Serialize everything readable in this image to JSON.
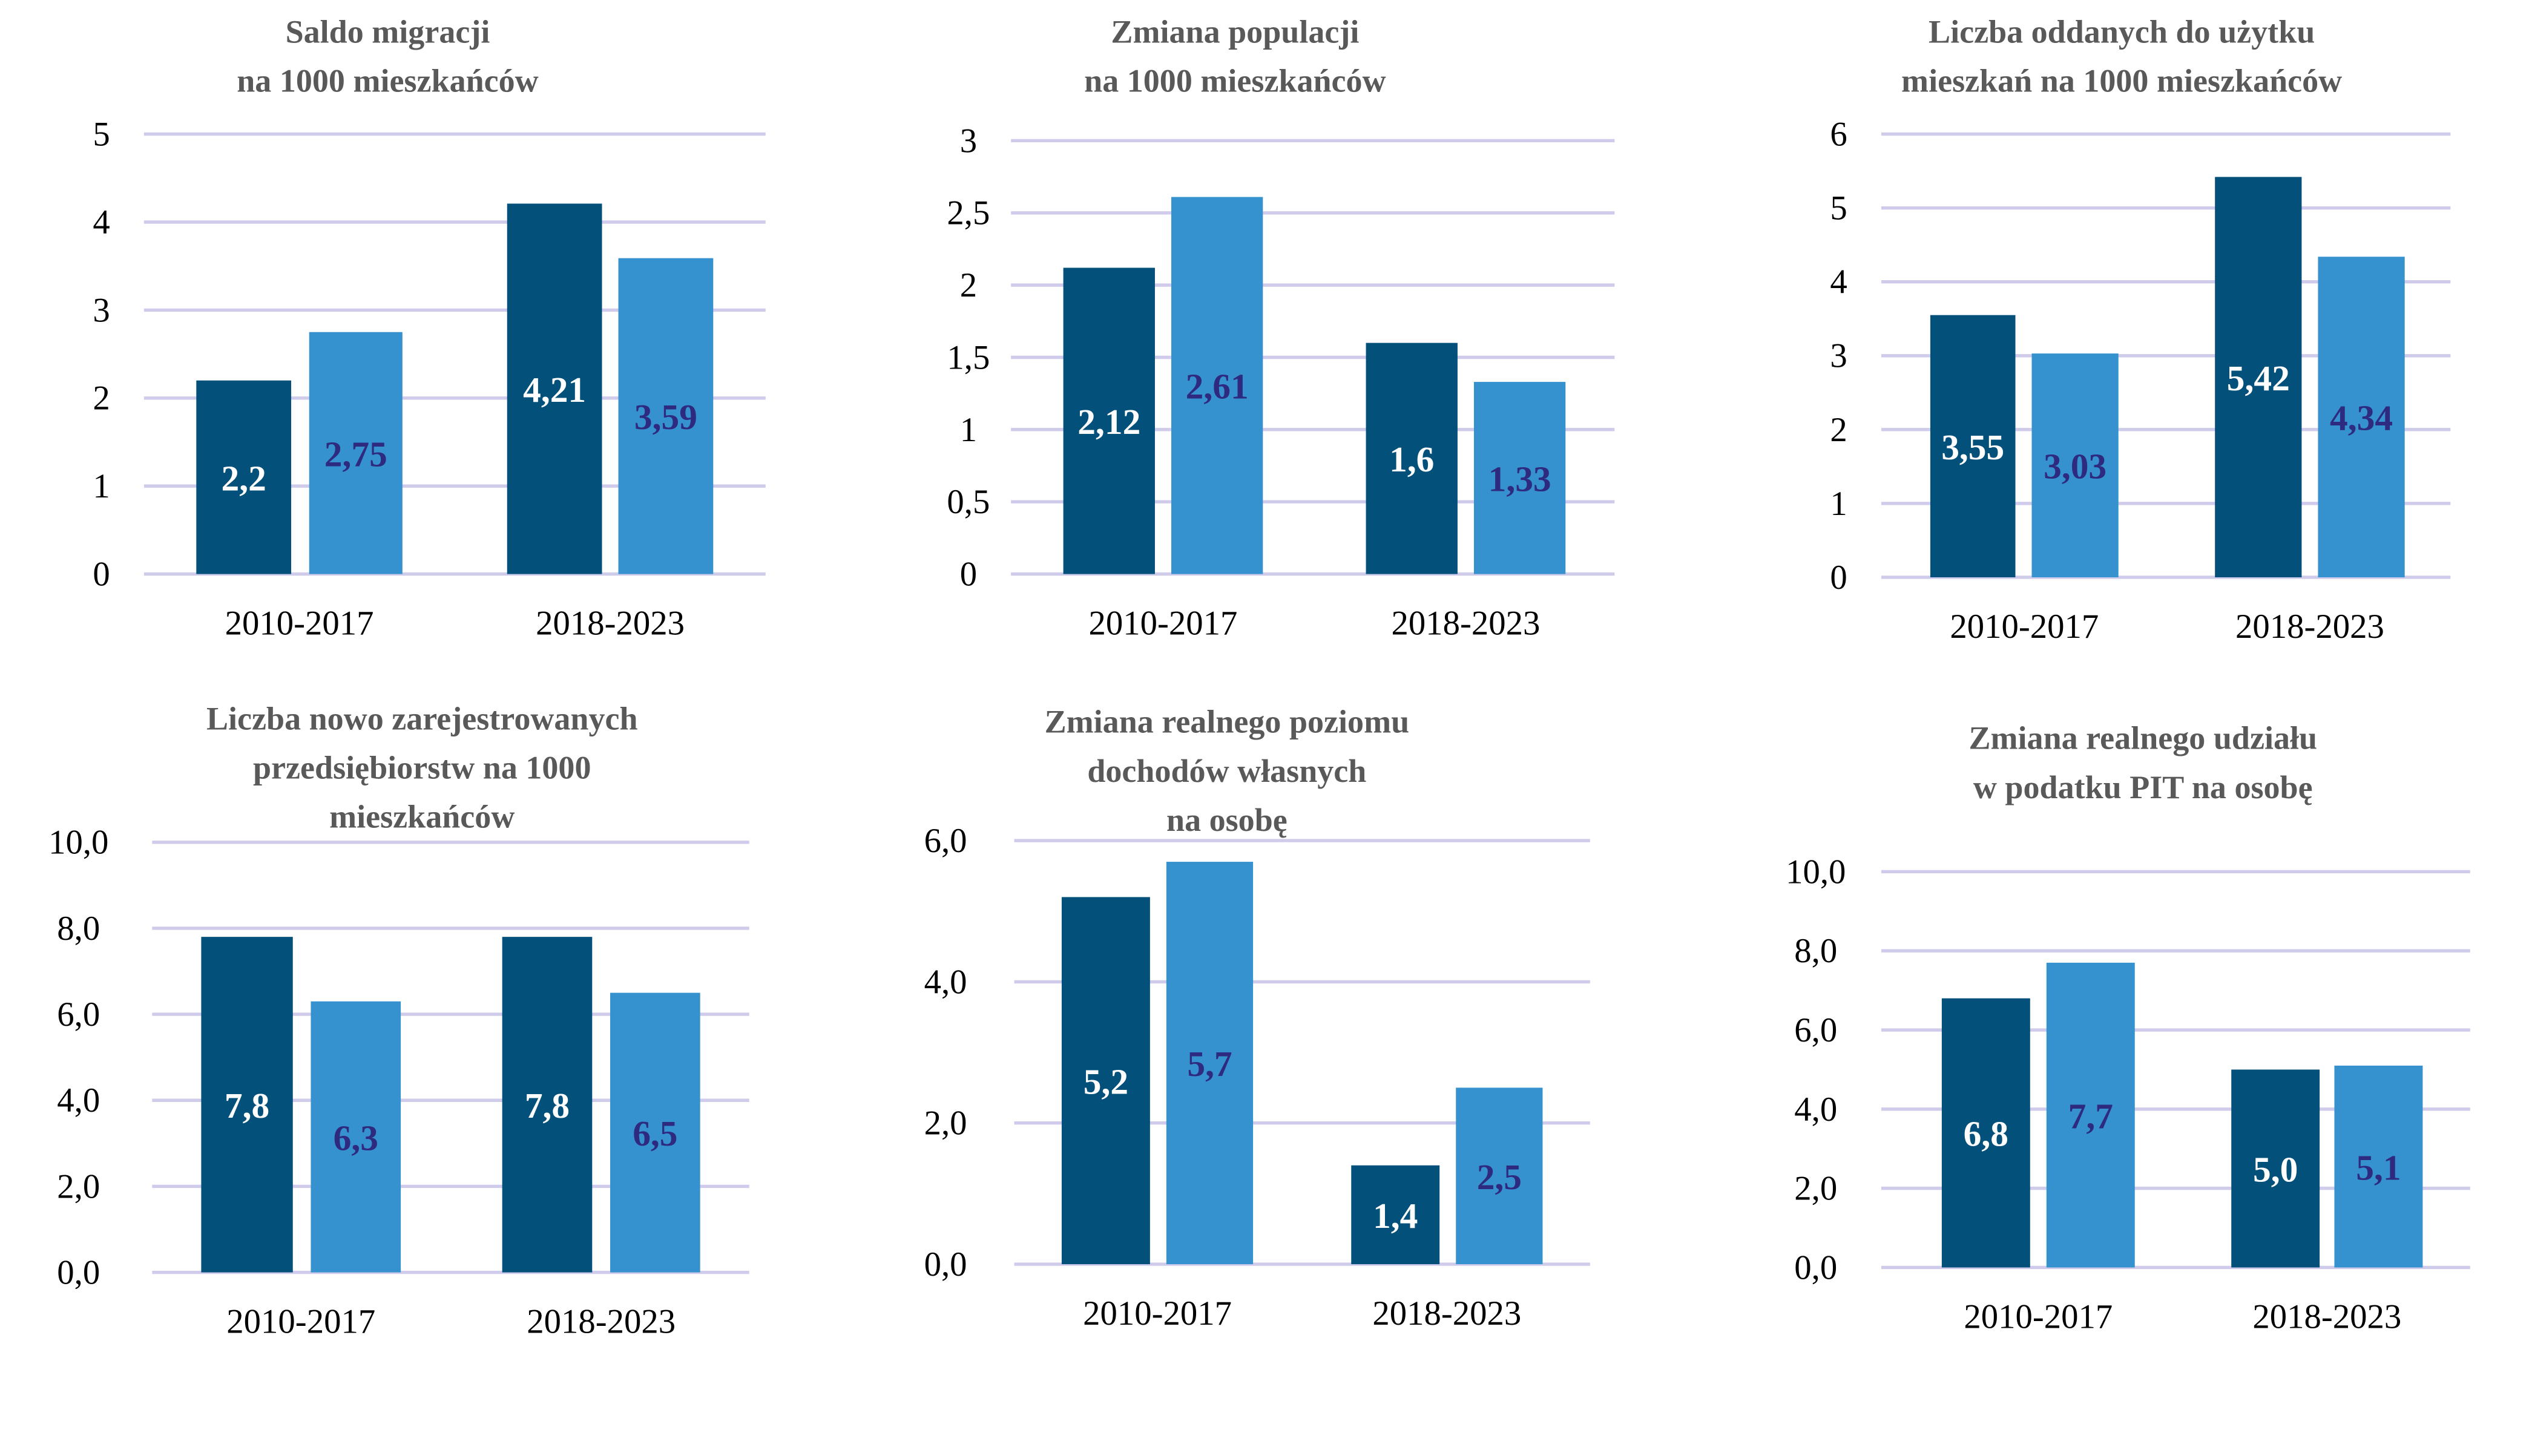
{
  "colors": {
    "series_dark": "#03507A",
    "series_light": "#3592CF",
    "label_dark_bar": "#FFFFFF",
    "label_light_bar": "#2E2A7F",
    "grid": "#CFCBEB",
    "title": "#595959"
  },
  "chart_data": [
    {
      "type": "bar",
      "title": "Saldo migracji\nna 1000 mieszkańców",
      "categories": [
        "2010-2017",
        "2018-2023"
      ],
      "series": [
        {
          "values": [
            2.2,
            4.21
          ]
        },
        {
          "values": [
            2.75,
            3.59
          ]
        }
      ],
      "data_labels": [
        [
          "2,2",
          "4,21"
        ],
        [
          "2,75",
          "3,59"
        ]
      ],
      "ylim": [
        0,
        5
      ],
      "yticks": [
        "0",
        "1",
        "2",
        "3",
        "4",
        "5"
      ],
      "grid": true,
      "legend": "none"
    },
    {
      "type": "bar",
      "title": "Zmiana populacji\nna 1000 mieszkańców",
      "categories": [
        "2010-2017",
        "2018-2023"
      ],
      "series": [
        {
          "values": [
            2.12,
            1.6
          ]
        },
        {
          "values": [
            2.61,
            1.33
          ]
        }
      ],
      "data_labels": [
        [
          "2,12",
          "1,6"
        ],
        [
          "2,61",
          "1,33"
        ]
      ],
      "ylim": [
        0,
        3
      ],
      "yticks": [
        "0",
        "0,5",
        "1",
        "1,5",
        "2",
        "2,5",
        "3"
      ],
      "grid": true,
      "legend": "none"
    },
    {
      "type": "bar",
      "title": "Liczba oddanych do użytku\nmieszkań na 1000 mieszkańców",
      "categories": [
        "2010-2017",
        "2018-2023"
      ],
      "series": [
        {
          "values": [
            3.55,
            5.42
          ]
        },
        {
          "values": [
            3.03,
            4.34
          ]
        }
      ],
      "data_labels": [
        [
          "3,55",
          "5,42"
        ],
        [
          "3,03",
          "4,34"
        ]
      ],
      "ylim": [
        0,
        6
      ],
      "yticks": [
        "0",
        "1",
        "2",
        "3",
        "4",
        "5",
        "6"
      ],
      "grid": true,
      "legend": "none"
    },
    {
      "type": "bar",
      "title": "Liczba nowo zarejestrowanych\nprzedsiębiorstw na 1000\nmieszkańców",
      "categories": [
        "2010-2017",
        "2018-2023"
      ],
      "series": [
        {
          "values": [
            7.8,
            7.8
          ]
        },
        {
          "values": [
            6.3,
            6.5
          ]
        }
      ],
      "data_labels": [
        [
          "7,8",
          "7,8"
        ],
        [
          "6,3",
          "6,5"
        ]
      ],
      "ylim": [
        0,
        10
      ],
      "yticks": [
        "0,0",
        "2,0",
        "4,0",
        "6,0",
        "8,0",
        "10,0"
      ],
      "grid": true,
      "legend": "none"
    },
    {
      "type": "bar",
      "title": "Zmiana realnego poziomu\ndochodów własnych\nna osobę",
      "categories": [
        "2010-2017",
        "2018-2023"
      ],
      "series": [
        {
          "values": [
            5.2,
            1.4
          ]
        },
        {
          "values": [
            5.7,
            2.5
          ]
        }
      ],
      "data_labels": [
        [
          "5,2",
          "1,4"
        ],
        [
          "5,7",
          "2,5"
        ]
      ],
      "ylim": [
        0,
        6
      ],
      "yticks": [
        "0,0",
        "2,0",
        "4,0",
        "6,0"
      ],
      "grid": true,
      "legend": "none"
    },
    {
      "type": "bar",
      "title": "Zmiana realnego udziału\nw podatku PIT na osobę",
      "categories": [
        "2010-2017",
        "2018-2023"
      ],
      "series": [
        {
          "values": [
            6.8,
            5.0
          ]
        },
        {
          "values": [
            7.7,
            5.1
          ]
        }
      ],
      "data_labels": [
        [
          "6,8",
          "5,0"
        ],
        [
          "7,7",
          "5,1"
        ]
      ],
      "ylim": [
        0,
        10
      ],
      "yticks": [
        "0,0",
        "2,0",
        "4,0",
        "6,0",
        "8,0",
        "10,0"
      ],
      "grid": true,
      "legend": "none"
    }
  ]
}
